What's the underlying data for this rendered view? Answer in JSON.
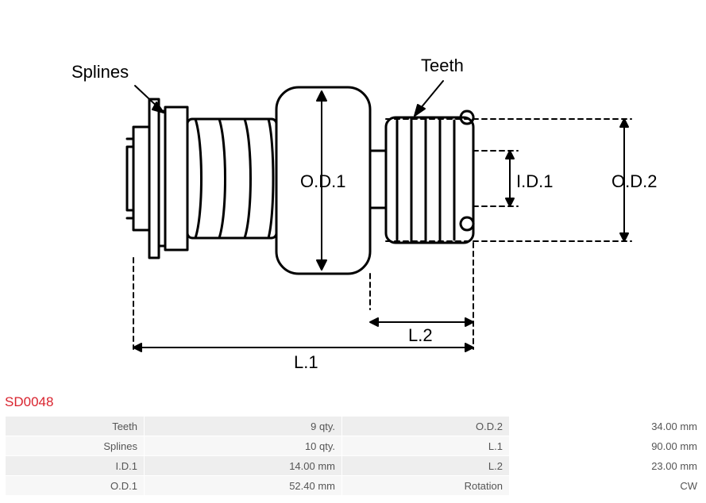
{
  "part_number": "SD0048",
  "title_color": "#d9232e",
  "title_fontsize": 17,
  "table": {
    "row_bg_shaded": "#eeeeee",
    "row_bg_light": "#f7f7f7",
    "text_color": "#555555",
    "rows": [
      {
        "n1": "Teeth",
        "v1": "9 qty.",
        "n2": "O.D.2",
        "v2": "34.00 mm"
      },
      {
        "n1": "Splines",
        "v1": "10 qty.",
        "n2": "L.1",
        "v2": "90.00 mm"
      },
      {
        "n1": "I.D.1",
        "v1": "14.00 mm",
        "n2": "L.2",
        "v2": "23.00 mm"
      },
      {
        "n1": "O.D.1",
        "v1": "52.40 mm",
        "n2": "Rotation",
        "v2": "CW"
      }
    ]
  },
  "diagram": {
    "stroke": "#000000",
    "stroke_width": 3,
    "stroke_width_thin": 2,
    "dash": "6 5",
    "labels": {
      "splines": "Splines",
      "teeth": "Teeth",
      "od1": "O.D.1",
      "id1": "I.D.1",
      "od2": "O.D.2",
      "l1": "L.1",
      "l2": "L.2"
    },
    "label_fontsize": 22,
    "label_color": "#000000"
  }
}
